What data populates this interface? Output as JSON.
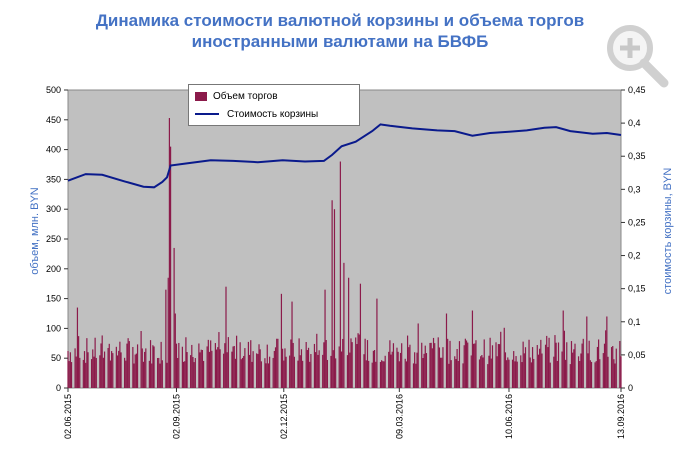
{
  "title_line1": "Динамика стоимости валютной корзины и объема торгов",
  "title_line2": "иностранными валютами на БВФБ",
  "zoom_icon": "magnifier-plus-icon",
  "colors": {
    "bars": "#8B1A4A",
    "line": "#0A1A8C",
    "plot_bg": "#C0C0C0",
    "title": "#4472C4"
  },
  "chart_data": {
    "type": "bar+line",
    "title": "Динамика стоимости валютной корзины и объема торгов иностранными валютами на БВФБ",
    "ylabel_left": "объем, млн. BYN",
    "ylabel_right": "стоимость корзины, BYN",
    "ylim_left": [
      0,
      500
    ],
    "ylim_right": [
      0,
      0.45
    ],
    "yticks_left": [
      "0",
      "50",
      "100",
      "150",
      "200",
      "250",
      "300",
      "350",
      "400",
      "450",
      "500"
    ],
    "yticks_right": [
      "0",
      "0,05",
      "0,1",
      "0,15",
      "0,2",
      "0,25",
      "0,3",
      "0,35",
      "0,4",
      "0,45"
    ],
    "xticks": [
      "02.06.2015",
      "02.09.2015",
      "02.12.2015",
      "09.03.2016",
      "10.06.2016",
      "13.09.2016"
    ],
    "legend_placement": "top-left",
    "grid": false,
    "series": [
      {
        "name": "Объем торгов",
        "kind": "bar",
        "axis": "left",
        "description": "daily trading volume, mostly 40–100 with spikes",
        "spikes": [
          {
            "date": "2015-06-10",
            "value": 135
          },
          {
            "date": "2015-08-24",
            "value": 165
          },
          {
            "date": "2015-08-26",
            "value": 185
          },
          {
            "date": "2015-08-27",
            "value": 453
          },
          {
            "date": "2015-08-28",
            "value": 405
          },
          {
            "date": "2015-08-31",
            "value": 235
          },
          {
            "date": "2015-09-01",
            "value": 125
          },
          {
            "date": "2015-10-14",
            "value": 170
          },
          {
            "date": "2015-11-30",
            "value": 158
          },
          {
            "date": "2015-12-09",
            "value": 145
          },
          {
            "date": "2016-01-06",
            "value": 165
          },
          {
            "date": "2016-01-12",
            "value": 315
          },
          {
            "date": "2016-01-14",
            "value": 300
          },
          {
            "date": "2016-01-19",
            "value": 380
          },
          {
            "date": "2016-01-22",
            "value": 210
          },
          {
            "date": "2016-01-26",
            "value": 185
          },
          {
            "date": "2016-02-05",
            "value": 175
          },
          {
            "date": "2016-02-19",
            "value": 150
          },
          {
            "date": "2016-04-18",
            "value": 125
          },
          {
            "date": "2016-05-10",
            "value": 130
          },
          {
            "date": "2016-07-26",
            "value": 130
          },
          {
            "date": "2016-08-15",
            "value": 120
          },
          {
            "date": "2016-09-01",
            "value": 120
          }
        ]
      },
      {
        "name": "Стоимость корзины",
        "kind": "line",
        "axis": "right",
        "points": [
          {
            "x": "2015-06-02",
            "y": 0.313
          },
          {
            "x": "2015-06-17",
            "y": 0.323
          },
          {
            "x": "2015-07-01",
            "y": 0.322
          },
          {
            "x": "2015-07-20",
            "y": 0.312
          },
          {
            "x": "2015-08-05",
            "y": 0.304
          },
          {
            "x": "2015-08-14",
            "y": 0.303
          },
          {
            "x": "2015-08-21",
            "y": 0.311
          },
          {
            "x": "2015-08-25",
            "y": 0.318
          },
          {
            "x": "2015-08-28",
            "y": 0.336
          },
          {
            "x": "2015-09-10",
            "y": 0.339
          },
          {
            "x": "2015-10-01",
            "y": 0.344
          },
          {
            "x": "2015-10-20",
            "y": 0.343
          },
          {
            "x": "2015-11-10",
            "y": 0.341
          },
          {
            "x": "2015-12-01",
            "y": 0.344
          },
          {
            "x": "2015-12-20",
            "y": 0.342
          },
          {
            "x": "2016-01-05",
            "y": 0.343
          },
          {
            "x": "2016-01-12",
            "y": 0.352
          },
          {
            "x": "2016-01-20",
            "y": 0.365
          },
          {
            "x": "2016-02-01",
            "y": 0.372
          },
          {
            "x": "2016-02-15",
            "y": 0.388
          },
          {
            "x": "2016-02-22",
            "y": 0.398
          },
          {
            "x": "2016-03-01",
            "y": 0.396
          },
          {
            "x": "2016-03-20",
            "y": 0.392
          },
          {
            "x": "2016-04-10",
            "y": 0.389
          },
          {
            "x": "2016-04-25",
            "y": 0.388
          },
          {
            "x": "2016-05-10",
            "y": 0.381
          },
          {
            "x": "2016-05-25",
            "y": 0.385
          },
          {
            "x": "2016-06-10",
            "y": 0.387
          },
          {
            "x": "2016-06-25",
            "y": 0.389
          },
          {
            "x": "2016-07-10",
            "y": 0.393
          },
          {
            "x": "2016-07-20",
            "y": 0.394
          },
          {
            "x": "2016-08-01",
            "y": 0.388
          },
          {
            "x": "2016-08-20",
            "y": 0.384
          },
          {
            "x": "2016-09-01",
            "y": 0.385
          },
          {
            "x": "2016-09-13",
            "y": 0.382
          }
        ]
      }
    ]
  }
}
